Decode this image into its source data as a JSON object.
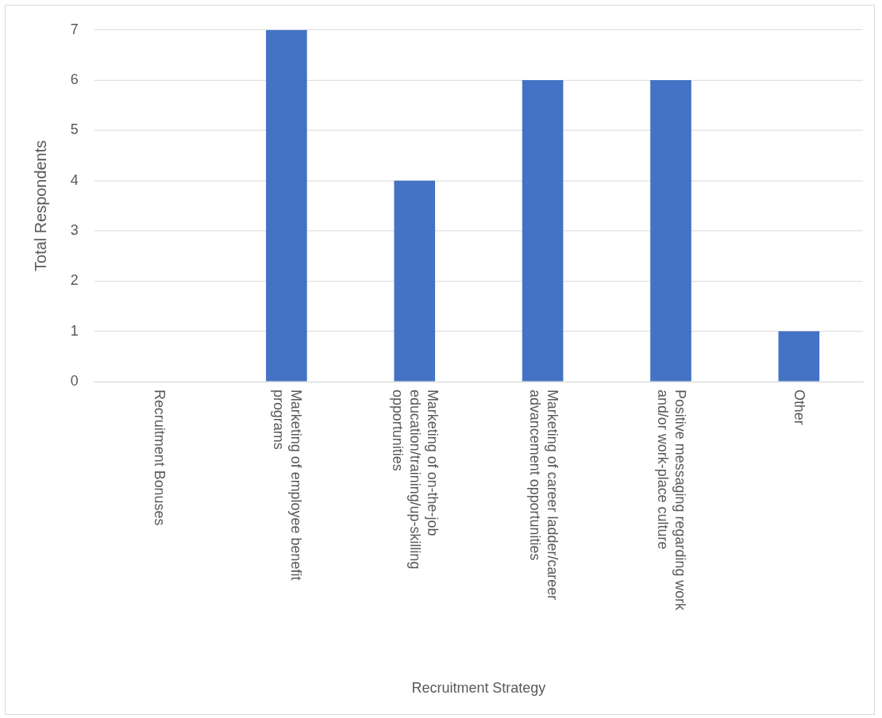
{
  "chart_data": {
    "type": "bar",
    "xlabel": "Recruitment Strategy",
    "ylabel": "Total Respondents",
    "categories": [
      "Recruitment Bonuses",
      "Marketing of employee benefit programs",
      "Marketing of on-the-job education/training/up-skilling opportunities",
      "Marketing of career ladder/career advancement opportunities",
      "Positive messaging regarding work and/or work-place culture",
      "Other"
    ],
    "values": [
      0,
      7,
      4,
      6,
      6,
      1
    ],
    "color": "#4472c4",
    "ylim": [
      0,
      7
    ],
    "yticks": [
      0,
      1,
      2,
      3,
      4,
      5,
      6,
      7
    ],
    "grid": "y",
    "legend": false
  }
}
